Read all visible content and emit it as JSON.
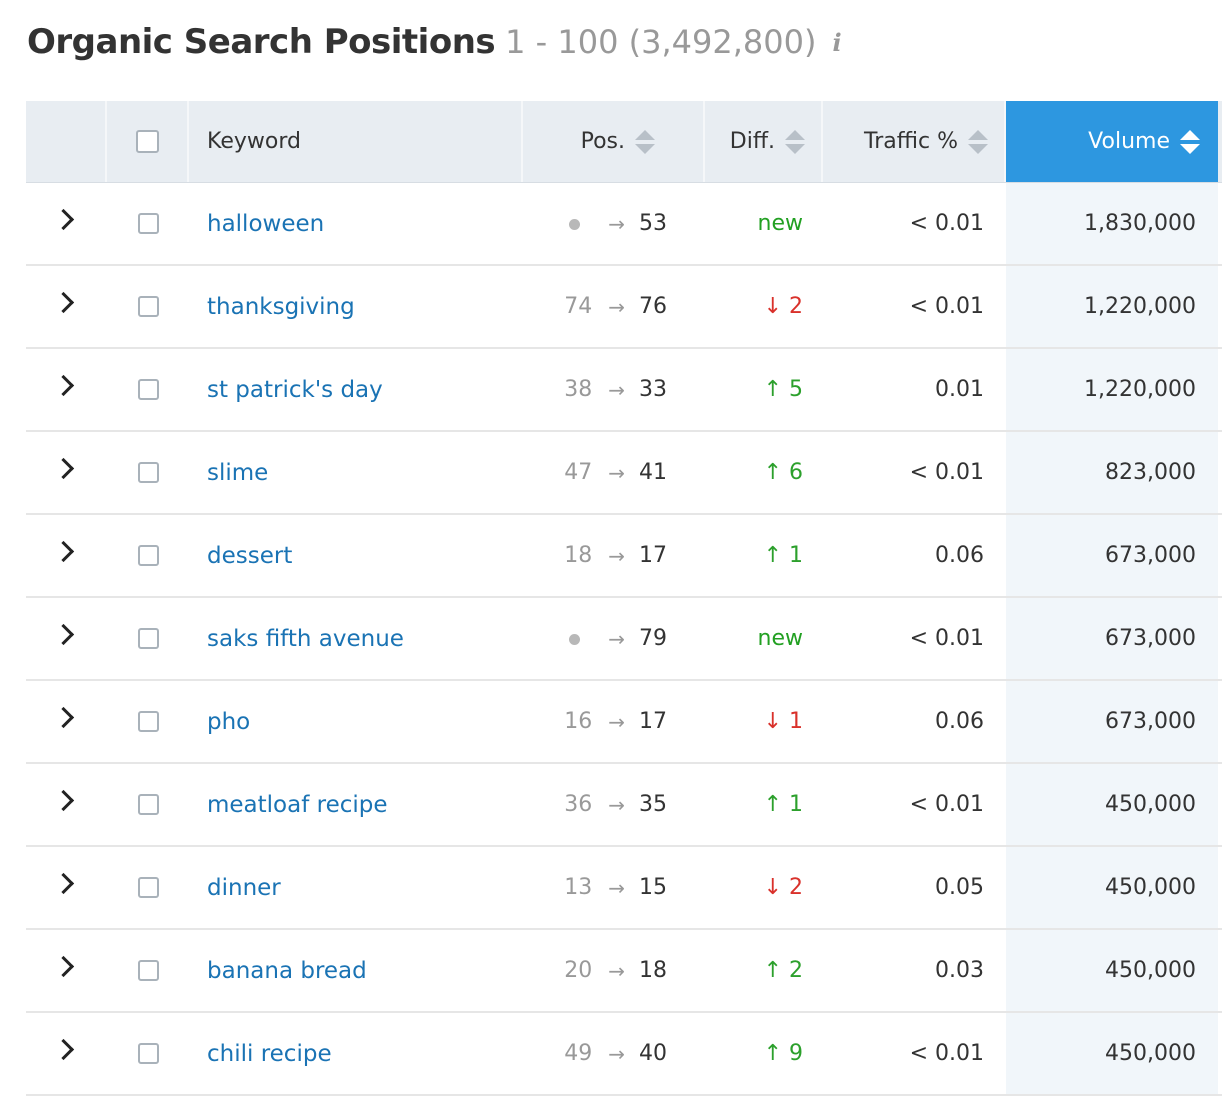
{
  "header": {
    "title": "Organic Search Positions",
    "range": "1 - 100 (3,492,800)",
    "info_icon": "i"
  },
  "columns": {
    "keyword": "Keyword",
    "pos": "Pos.",
    "diff": "Diff.",
    "traffic": "Traffic %",
    "volume": "Volume"
  },
  "colors": {
    "active_header": "#2d97e0",
    "keyword_link": "#1a73b4",
    "positive": "#2ca02c",
    "negative": "#d9312b",
    "new": "#22a022"
  },
  "rows": [
    {
      "keyword": "halloween",
      "prev": "",
      "cur": "53",
      "diff": "new",
      "diff_type": "new",
      "traffic": "< 0.01",
      "volume": "1,830,000"
    },
    {
      "keyword": "thanksgiving",
      "prev": "74",
      "cur": "76",
      "diff": "↓ 2",
      "diff_type": "down",
      "traffic": "< 0.01",
      "volume": "1,220,000"
    },
    {
      "keyword": "st patrick's day",
      "prev": "38",
      "cur": "33",
      "diff": "↑ 5",
      "diff_type": "up",
      "traffic": "0.01",
      "volume": "1,220,000"
    },
    {
      "keyword": "slime",
      "prev": "47",
      "cur": "41",
      "diff": "↑ 6",
      "diff_type": "up",
      "traffic": "< 0.01",
      "volume": "823,000"
    },
    {
      "keyword": "dessert",
      "prev": "18",
      "cur": "17",
      "diff": "↑ 1",
      "diff_type": "up",
      "traffic": "0.06",
      "volume": "673,000"
    },
    {
      "keyword": "saks fifth avenue",
      "prev": "",
      "cur": "79",
      "diff": "new",
      "diff_type": "new",
      "traffic": "< 0.01",
      "volume": "673,000"
    },
    {
      "keyword": "pho",
      "prev": "16",
      "cur": "17",
      "diff": "↓ 1",
      "diff_type": "down",
      "traffic": "0.06",
      "volume": "673,000"
    },
    {
      "keyword": "meatloaf recipe",
      "prev": "36",
      "cur": "35",
      "diff": "↑ 1",
      "diff_type": "up",
      "traffic": "< 0.01",
      "volume": "450,000"
    },
    {
      "keyword": "dinner",
      "prev": "13",
      "cur": "15",
      "diff": "↓ 2",
      "diff_type": "down",
      "traffic": "0.05",
      "volume": "450,000"
    },
    {
      "keyword": "banana bread",
      "prev": "20",
      "cur": "18",
      "diff": "↑ 2",
      "diff_type": "up",
      "traffic": "0.03",
      "volume": "450,000"
    },
    {
      "keyword": "chili recipe",
      "prev": "49",
      "cur": "40",
      "diff": "↑ 9",
      "diff_type": "up",
      "traffic": "< 0.01",
      "volume": "450,000"
    }
  ]
}
